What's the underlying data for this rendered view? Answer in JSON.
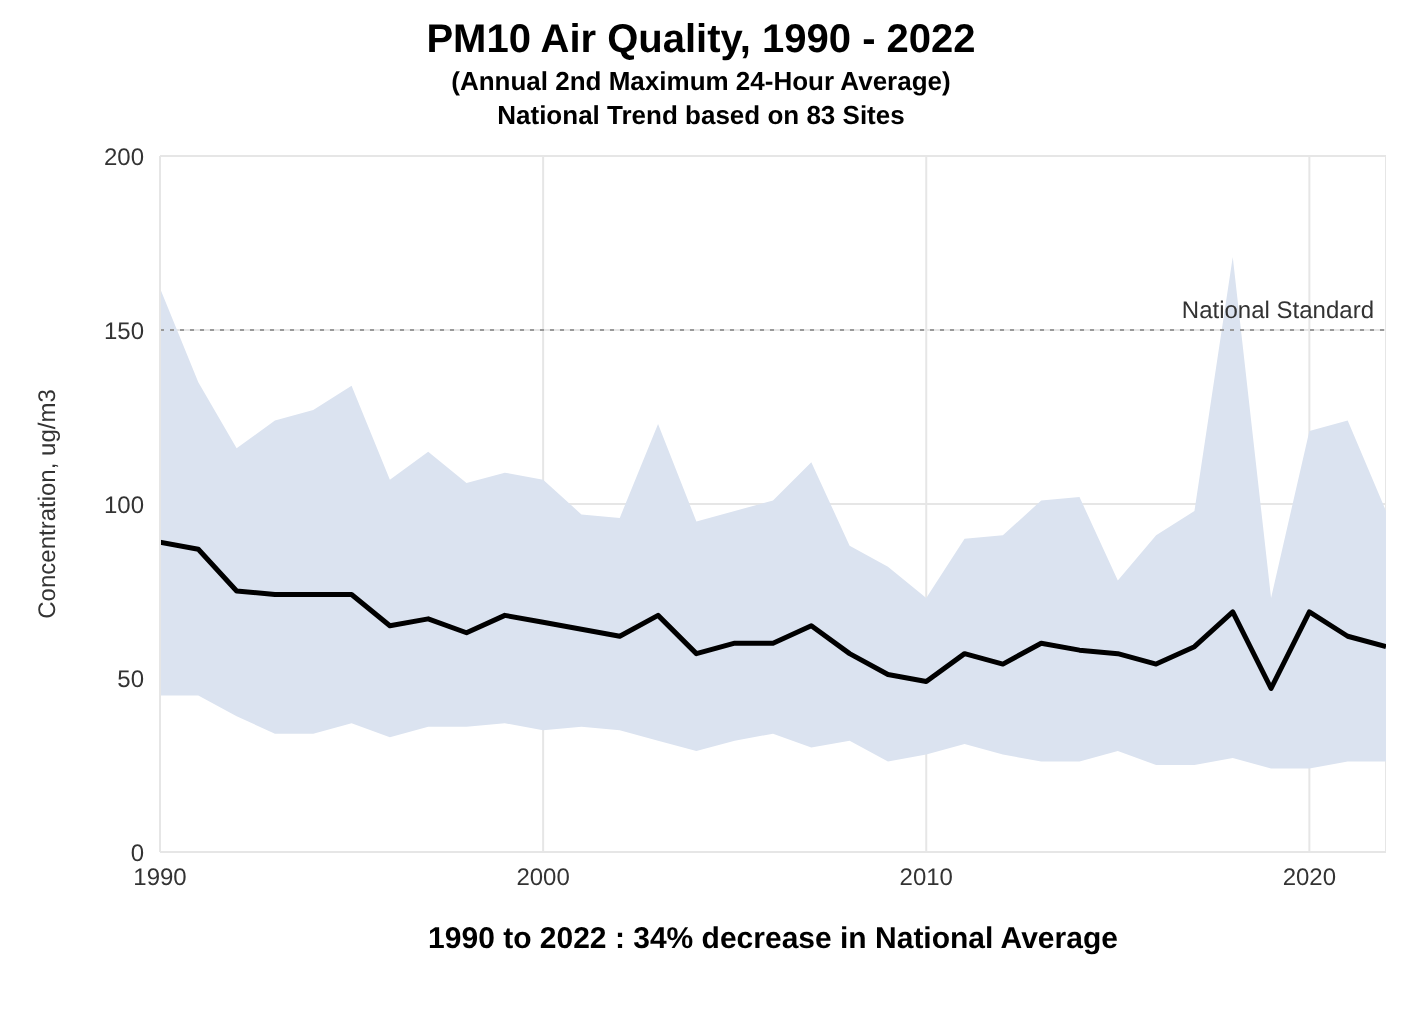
{
  "chart_data": {
    "type": "line",
    "title": "PM10 Air Quality, 1990 - 2022",
    "subtitle": "(Annual 2nd Maximum 24-Hour Average)\nNational Trend based on 83 Sites",
    "xlabel": "1990 to 2022 :  34% decrease in National Average",
    "ylabel": "Concentration, ug/m3",
    "x": [
      1990,
      1991,
      1992,
      1993,
      1994,
      1995,
      1996,
      1997,
      1998,
      1999,
      2000,
      2001,
      2002,
      2003,
      2004,
      2005,
      2006,
      2007,
      2008,
      2009,
      2010,
      2011,
      2012,
      2013,
      2014,
      2015,
      2016,
      2017,
      2018,
      2019,
      2020,
      2021,
      2022
    ],
    "series": [
      {
        "color": "#000000",
        "values": [
          89,
          87,
          75,
          74,
          74,
          74,
          65,
          67,
          63,
          68,
          66,
          64,
          62,
          68,
          57,
          60,
          60,
          65,
          57,
          51,
          49,
          57,
          54,
          60,
          58,
          57,
          54,
          59,
          69,
          47,
          69,
          62,
          59
        ],
        "lower": [
          45,
          45,
          39,
          34,
          34,
          37,
          33,
          36,
          36,
          37,
          35,
          36,
          35,
          32,
          29,
          32,
          34,
          30,
          32,
          26,
          28,
          31,
          28,
          26,
          26,
          29,
          25,
          25,
          27,
          24,
          24,
          26,
          26
        ],
        "upper": [
          162,
          135,
          116,
          124,
          127,
          134,
          107,
          115,
          106,
          109,
          107,
          97,
          96,
          123,
          95,
          98,
          101,
          112,
          88,
          82,
          73,
          90,
          91,
          101,
          102,
          78,
          91,
          98,
          171,
          73,
          121,
          124,
          98
        ]
      }
    ],
    "xlim": [
      1990,
      2022
    ],
    "xticks": [
      1990,
      2000,
      2010,
      2020
    ],
    "ylim": [
      0,
      200
    ],
    "yticks": [
      0,
      50,
      100,
      150,
      200
    ],
    "grid": true,
    "legend": false,
    "marker": "none",
    "line_style": "solid",
    "ref_lines": [
      {
        "axis": "y",
        "value": 150,
        "label": "National Standard",
        "color": "#999999",
        "line_style": "dotted"
      }
    ]
  }
}
